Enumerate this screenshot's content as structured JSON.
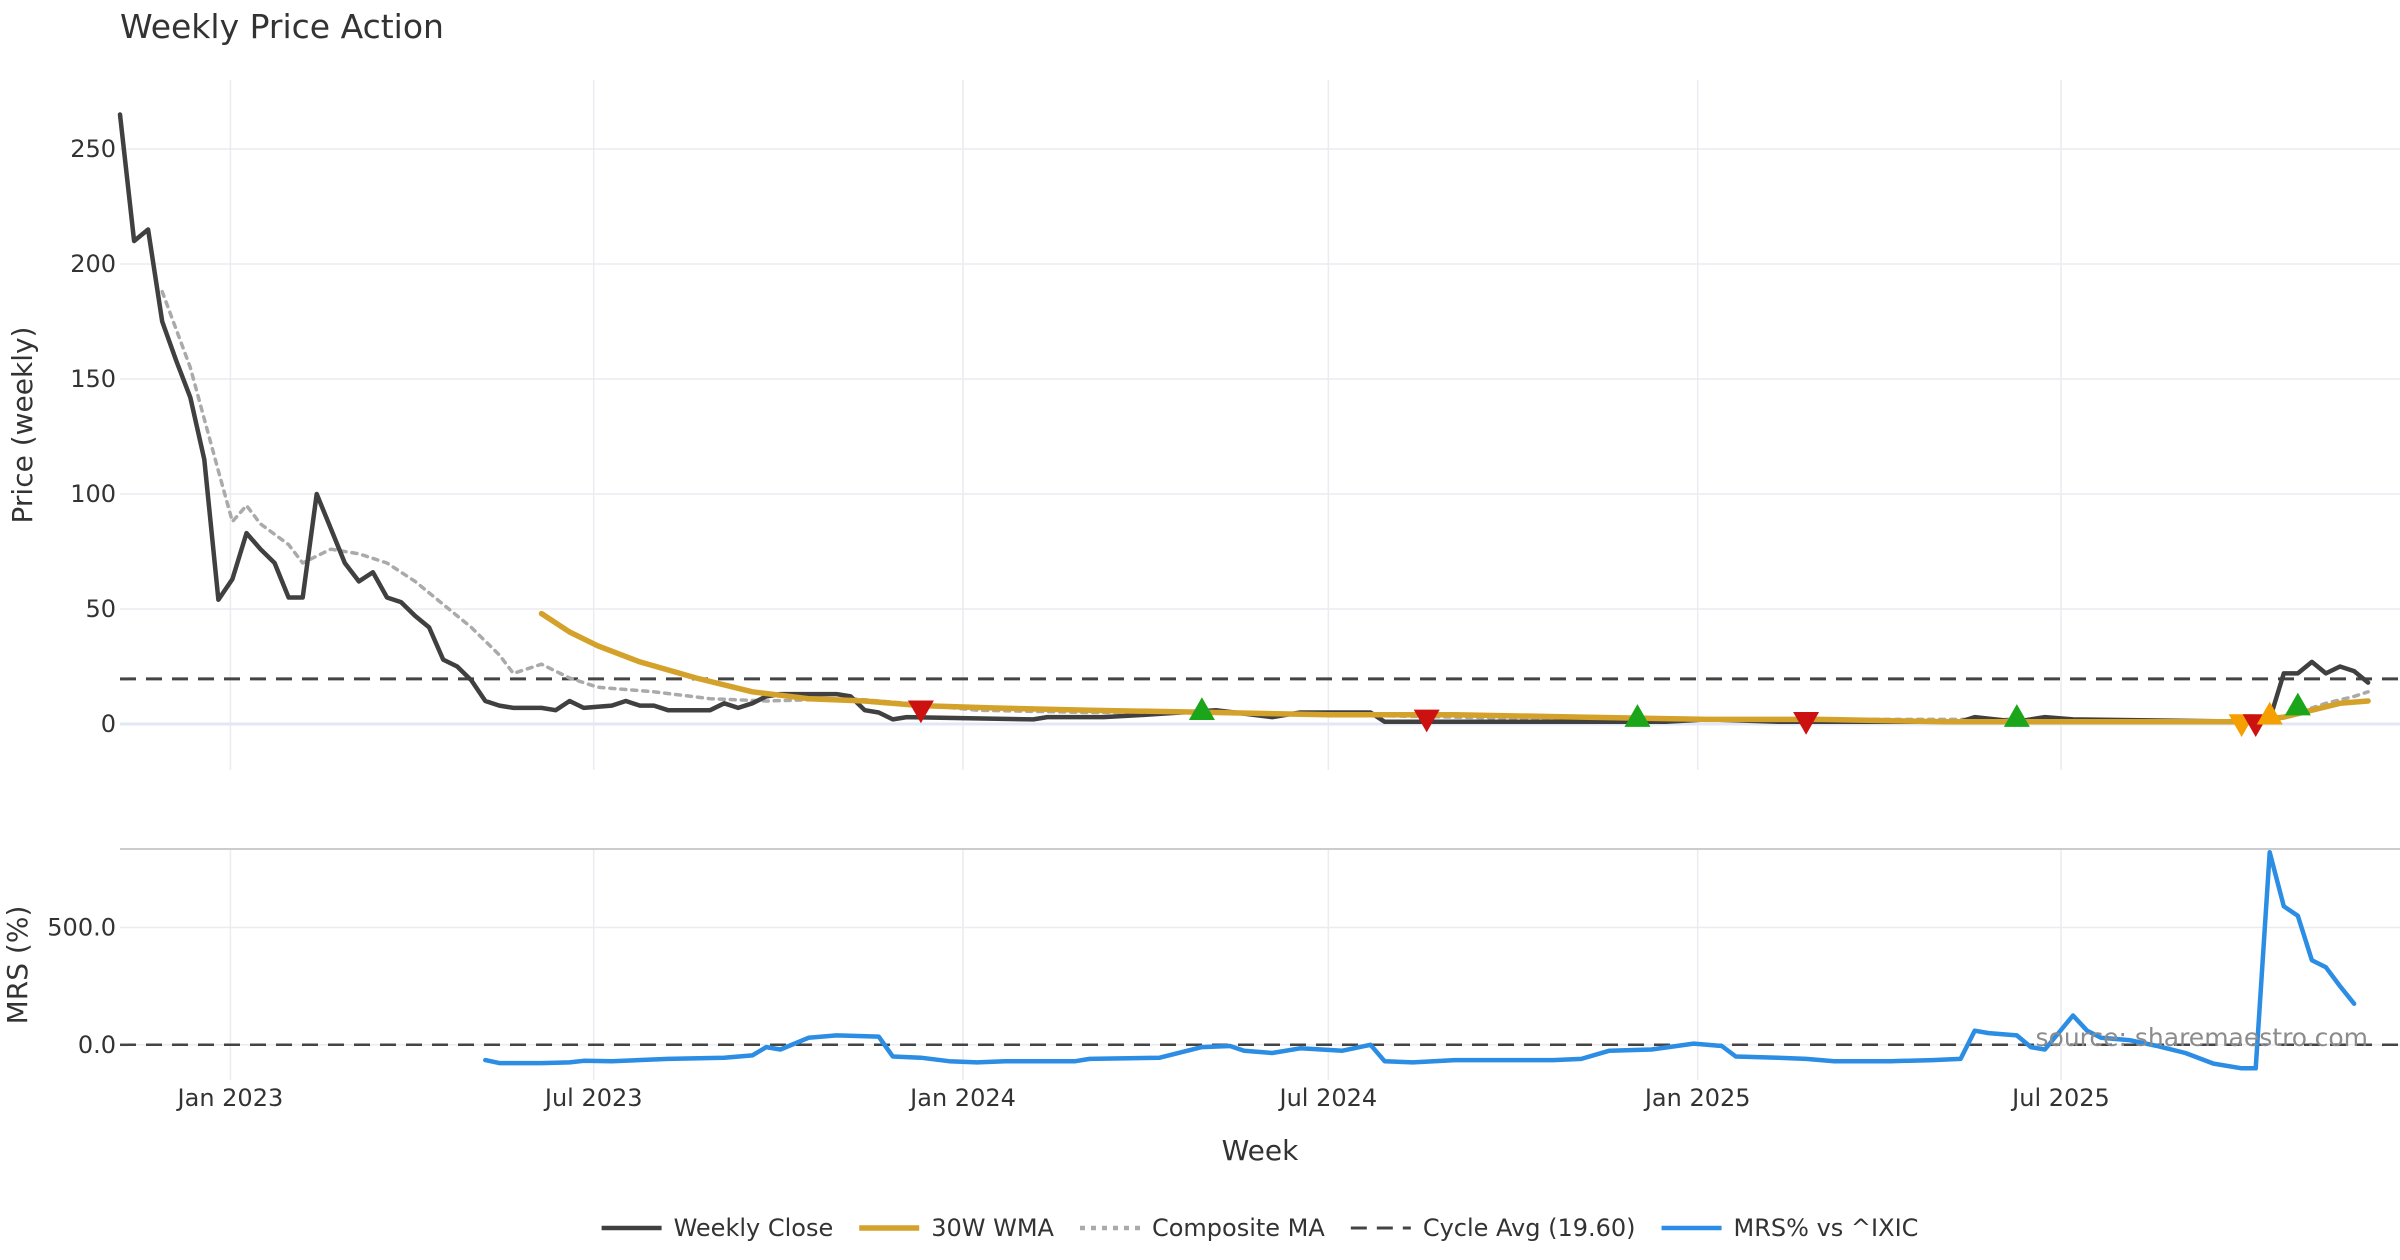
{
  "chart_data": {
    "type": "line",
    "title": "Weekly Price Action",
    "xlabel": "Week",
    "source": "source: sharemaestro.com",
    "x_range": [
      "2022-11-07",
      "2025-11-17"
    ],
    "x_ticks": [
      {
        "date": "2023-01-01",
        "label": "Jan 2023"
      },
      {
        "date": "2023-07-01",
        "label": "Jul 2023"
      },
      {
        "date": "2024-01-01",
        "label": "Jan 2024"
      },
      {
        "date": "2024-07-01",
        "label": "Jul 2024"
      },
      {
        "date": "2025-01-01",
        "label": "Jan 2025"
      },
      {
        "date": "2025-07-01",
        "label": "Jul 2025"
      }
    ],
    "price_panel": {
      "ylabel": "Price (weekly)",
      "ylim": [
        -20,
        280
      ],
      "yticks": [
        0,
        50,
        100,
        150,
        200,
        250
      ],
      "ytick_labels": [
        "0",
        "50",
        "100",
        "150",
        "200",
        "250"
      ],
      "cycle_avg": 19.6
    },
    "mrs_panel": {
      "ylabel": "MRS (%)",
      "ylim": [
        -150,
        830
      ],
      "yticks": [
        0,
        500
      ],
      "ytick_labels": [
        "0.0",
        "500.0"
      ]
    },
    "colors": {
      "close": "#404040",
      "wma": "#d4a22a",
      "composite": "#aaaaaa",
      "cycle": "#444444",
      "mrs": "#2b8de3",
      "buy": "#1aa51a",
      "sell": "#cc1111",
      "warn": "#f5a000",
      "grid": "#ebebf0"
    },
    "series": [
      {
        "name": "Weekly Close",
        "points": [
          [
            "2022-11-07",
            265
          ],
          [
            "2022-11-14",
            210
          ],
          [
            "2022-11-21",
            215
          ],
          [
            "2022-11-28",
            175
          ],
          [
            "2022-12-05",
            158
          ],
          [
            "2022-12-12",
            142
          ],
          [
            "2022-12-19",
            115
          ],
          [
            "2022-12-26",
            54
          ],
          [
            "2023-01-02",
            63
          ],
          [
            "2023-01-09",
            83
          ],
          [
            "2023-01-16",
            76
          ],
          [
            "2023-01-23",
            70
          ],
          [
            "2023-01-30",
            55
          ],
          [
            "2023-02-06",
            55
          ],
          [
            "2023-02-13",
            100
          ],
          [
            "2023-02-20",
            85
          ],
          [
            "2023-02-27",
            70
          ],
          [
            "2023-03-06",
            62
          ],
          [
            "2023-03-13",
            66
          ],
          [
            "2023-03-20",
            55
          ],
          [
            "2023-03-27",
            53
          ],
          [
            "2023-04-03",
            47
          ],
          [
            "2023-04-10",
            42
          ],
          [
            "2023-04-17",
            28
          ],
          [
            "2023-04-24",
            25
          ],
          [
            "2023-05-01",
            19
          ],
          [
            "2023-05-08",
            10
          ],
          [
            "2023-05-15",
            8
          ],
          [
            "2023-05-22",
            7
          ],
          [
            "2023-06-05",
            7
          ],
          [
            "2023-06-12",
            6
          ],
          [
            "2023-06-19",
            10
          ],
          [
            "2023-06-26",
            7
          ],
          [
            "2023-07-10",
            8
          ],
          [
            "2023-07-17",
            10
          ],
          [
            "2023-07-24",
            8
          ],
          [
            "2023-07-31",
            8
          ],
          [
            "2023-08-07",
            6
          ],
          [
            "2023-08-28",
            6
          ],
          [
            "2023-09-04",
            9
          ],
          [
            "2023-09-11",
            7
          ],
          [
            "2023-09-18",
            9
          ],
          [
            "2023-09-25",
            12
          ],
          [
            "2023-10-02",
            13
          ],
          [
            "2023-10-30",
            13
          ],
          [
            "2023-11-06",
            12
          ],
          [
            "2023-11-13",
            6
          ],
          [
            "2023-11-20",
            5
          ],
          [
            "2023-11-27",
            2
          ],
          [
            "2023-12-04",
            3
          ],
          [
            "2024-02-05",
            2
          ],
          [
            "2024-02-12",
            3
          ],
          [
            "2024-03-11",
            3
          ],
          [
            "2024-04-01",
            4
          ],
          [
            "2024-05-06",
            6
          ],
          [
            "2024-06-03",
            3
          ],
          [
            "2024-06-17",
            5
          ],
          [
            "2024-07-22",
            5
          ],
          [
            "2024-07-29",
            1
          ],
          [
            "2024-10-28",
            1
          ],
          [
            "2024-11-04",
            1
          ],
          [
            "2024-12-16",
            1
          ],
          [
            "2025-01-06",
            2
          ],
          [
            "2025-02-10",
            1
          ],
          [
            "2025-05-12",
            1
          ],
          [
            "2025-05-19",
            3
          ],
          [
            "2025-06-09",
            1
          ],
          [
            "2025-06-23",
            3
          ],
          [
            "2025-07-07",
            2
          ],
          [
            "2025-10-06",
            1
          ],
          [
            "2025-10-13",
            2
          ],
          [
            "2025-10-20",
            22
          ],
          [
            "2025-10-27",
            22
          ],
          [
            "2025-11-03",
            27
          ],
          [
            "2025-11-10",
            22
          ],
          [
            "2025-11-17",
            25
          ],
          [
            "2025-11-24",
            23
          ],
          [
            "2025-12-01",
            18
          ]
        ]
      },
      {
        "name": "30W WMA",
        "points": [
          [
            "2023-06-05",
            48
          ],
          [
            "2023-06-19",
            40
          ],
          [
            "2023-07-03",
            34
          ],
          [
            "2023-07-24",
            27
          ],
          [
            "2023-08-21",
            20
          ],
          [
            "2023-09-18",
            14
          ],
          [
            "2023-10-16",
            11
          ],
          [
            "2023-11-13",
            10
          ],
          [
            "2023-12-11",
            8
          ],
          [
            "2024-01-15",
            7
          ],
          [
            "2024-03-04",
            6
          ],
          [
            "2024-05-06",
            5
          ],
          [
            "2024-07-01",
            4
          ],
          [
            "2024-09-02",
            4
          ],
          [
            "2024-11-04",
            3
          ],
          [
            "2025-01-06",
            2
          ],
          [
            "2025-03-03",
            2
          ],
          [
            "2025-05-05",
            1
          ],
          [
            "2025-07-07",
            1
          ],
          [
            "2025-09-01",
            1
          ],
          [
            "2025-09-29",
            1
          ],
          [
            "2025-10-20",
            3
          ],
          [
            "2025-11-03",
            6
          ],
          [
            "2025-11-17",
            9
          ],
          [
            "2025-12-01",
            10
          ]
        ]
      },
      {
        "name": "Composite MA",
        "points": [
          [
            "2022-11-28",
            188
          ],
          [
            "2022-12-12",
            155
          ],
          [
            "2022-12-26",
            110
          ],
          [
            "2023-01-02",
            88
          ],
          [
            "2023-01-09",
            95
          ],
          [
            "2023-01-16",
            87
          ],
          [
            "2023-01-30",
            78
          ],
          [
            "2023-02-06",
            70
          ],
          [
            "2023-02-20",
            76
          ],
          [
            "2023-03-06",
            74
          ],
          [
            "2023-03-20",
            70
          ],
          [
            "2023-04-03",
            62
          ],
          [
            "2023-04-17",
            52
          ],
          [
            "2023-05-01",
            42
          ],
          [
            "2023-05-15",
            30
          ],
          [
            "2023-05-22",
            22
          ],
          [
            "2023-06-05",
            26
          ],
          [
            "2023-06-19",
            20
          ],
          [
            "2023-07-03",
            16
          ],
          [
            "2023-07-31",
            14
          ],
          [
            "2023-08-28",
            11
          ],
          [
            "2023-09-25",
            10
          ],
          [
            "2023-11-06",
            11
          ],
          [
            "2023-12-04",
            9
          ],
          [
            "2024-01-08",
            6
          ],
          [
            "2024-03-04",
            5
          ],
          [
            "2024-05-06",
            5
          ],
          [
            "2024-07-01",
            4
          ],
          [
            "2024-09-02",
            3
          ],
          [
            "2024-11-04",
            2
          ],
          [
            "2025-01-06",
            2
          ],
          [
            "2025-03-03",
            2
          ],
          [
            "2025-05-05",
            2
          ],
          [
            "2025-07-07",
            2
          ],
          [
            "2025-09-01",
            1
          ],
          [
            "2025-10-13",
            1
          ],
          [
            "2025-10-27",
            5
          ],
          [
            "2025-11-10",
            9
          ],
          [
            "2025-11-24",
            12
          ],
          [
            "2025-12-01",
            14
          ]
        ]
      },
      {
        "name": "MRS% vs ^IXIC",
        "points": [
          [
            "2023-05-08",
            -65
          ],
          [
            "2023-05-15",
            -78
          ],
          [
            "2023-06-05",
            -78
          ],
          [
            "2023-06-19",
            -75
          ],
          [
            "2023-06-26",
            -68
          ],
          [
            "2023-07-10",
            -70
          ],
          [
            "2023-08-07",
            -60
          ],
          [
            "2023-09-04",
            -55
          ],
          [
            "2023-09-18",
            -45
          ],
          [
            "2023-09-25",
            -10
          ],
          [
            "2023-10-02",
            -20
          ],
          [
            "2023-10-16",
            30
          ],
          [
            "2023-10-30",
            40
          ],
          [
            "2023-11-20",
            35
          ],
          [
            "2023-11-27",
            -50
          ],
          [
            "2023-12-11",
            -55
          ],
          [
            "2023-12-25",
            -70
          ],
          [
            "2024-01-08",
            -75
          ],
          [
            "2024-01-22",
            -70
          ],
          [
            "2024-02-26",
            -70
          ],
          [
            "2024-03-04",
            -60
          ],
          [
            "2024-04-08",
            -55
          ],
          [
            "2024-04-29",
            -10
          ],
          [
            "2024-05-13",
            -5
          ],
          [
            "2024-05-20",
            -25
          ],
          [
            "2024-06-03",
            -35
          ],
          [
            "2024-06-17",
            -15
          ],
          [
            "2024-07-08",
            -25
          ],
          [
            "2024-07-22",
            0
          ],
          [
            "2024-07-29",
            -70
          ],
          [
            "2024-08-12",
            -75
          ],
          [
            "2024-09-02",
            -65
          ],
          [
            "2024-10-21",
            -65
          ],
          [
            "2024-11-04",
            -60
          ],
          [
            "2024-11-18",
            -25
          ],
          [
            "2024-12-09",
            -20
          ],
          [
            "2024-12-30",
            5
          ],
          [
            "2025-01-13",
            -5
          ],
          [
            "2025-01-20",
            -50
          ],
          [
            "2025-02-10",
            -55
          ],
          [
            "2025-02-24",
            -60
          ],
          [
            "2025-03-10",
            -70
          ],
          [
            "2025-04-07",
            -70
          ],
          [
            "2025-04-28",
            -65
          ],
          [
            "2025-05-12",
            -60
          ],
          [
            "2025-05-19",
            60
          ],
          [
            "2025-05-26",
            50
          ],
          [
            "2025-06-09",
            40
          ],
          [
            "2025-06-16",
            -10
          ],
          [
            "2025-06-23",
            -20
          ],
          [
            "2025-07-07",
            125
          ],
          [
            "2025-07-14",
            60
          ],
          [
            "2025-07-21",
            30
          ],
          [
            "2025-08-04",
            20
          ],
          [
            "2025-08-18",
            -5
          ],
          [
            "2025-09-01",
            -35
          ],
          [
            "2025-09-15",
            -80
          ],
          [
            "2025-09-29",
            -100
          ],
          [
            "2025-10-06",
            -100
          ],
          [
            "2025-10-13",
            820
          ],
          [
            "2025-10-20",
            590
          ],
          [
            "2025-10-27",
            550
          ],
          [
            "2025-11-03",
            360
          ],
          [
            "2025-11-10",
            330
          ],
          [
            "2025-11-17",
            250
          ],
          [
            "2025-11-24",
            175
          ]
        ]
      }
    ],
    "signals": [
      {
        "date": "2023-12-11",
        "value": 6,
        "type": "sell"
      },
      {
        "date": "2024-04-29",
        "value": 6,
        "type": "buy"
      },
      {
        "date": "2024-08-19",
        "value": 2,
        "type": "sell"
      },
      {
        "date": "2024-12-02",
        "value": 3,
        "type": "buy"
      },
      {
        "date": "2025-02-24",
        "value": 1,
        "type": "sell"
      },
      {
        "date": "2025-06-09",
        "value": 3,
        "type": "buy"
      },
      {
        "date": "2025-09-29",
        "value": 0,
        "type": "warn_down"
      },
      {
        "date": "2025-10-06",
        "value": 0,
        "type": "sell"
      },
      {
        "date": "2025-10-13",
        "value": 4,
        "type": "warn_up"
      },
      {
        "date": "2025-10-27",
        "value": 8,
        "type": "buy"
      }
    ],
    "legend": {
      "position": "bottom-center",
      "entries": [
        {
          "label": "Weekly Close",
          "style": "solid",
          "color": "#404040"
        },
        {
          "label": "30W WMA",
          "style": "solid",
          "color": "#d4a22a"
        },
        {
          "label": "Composite MA",
          "style": "dotted",
          "color": "#aaaaaa"
        },
        {
          "label": "Cycle Avg (19.60)",
          "style": "dashed",
          "color": "#444444"
        },
        {
          "label": "MRS% vs ^IXIC",
          "style": "solid",
          "color": "#2b8de3"
        }
      ]
    }
  }
}
